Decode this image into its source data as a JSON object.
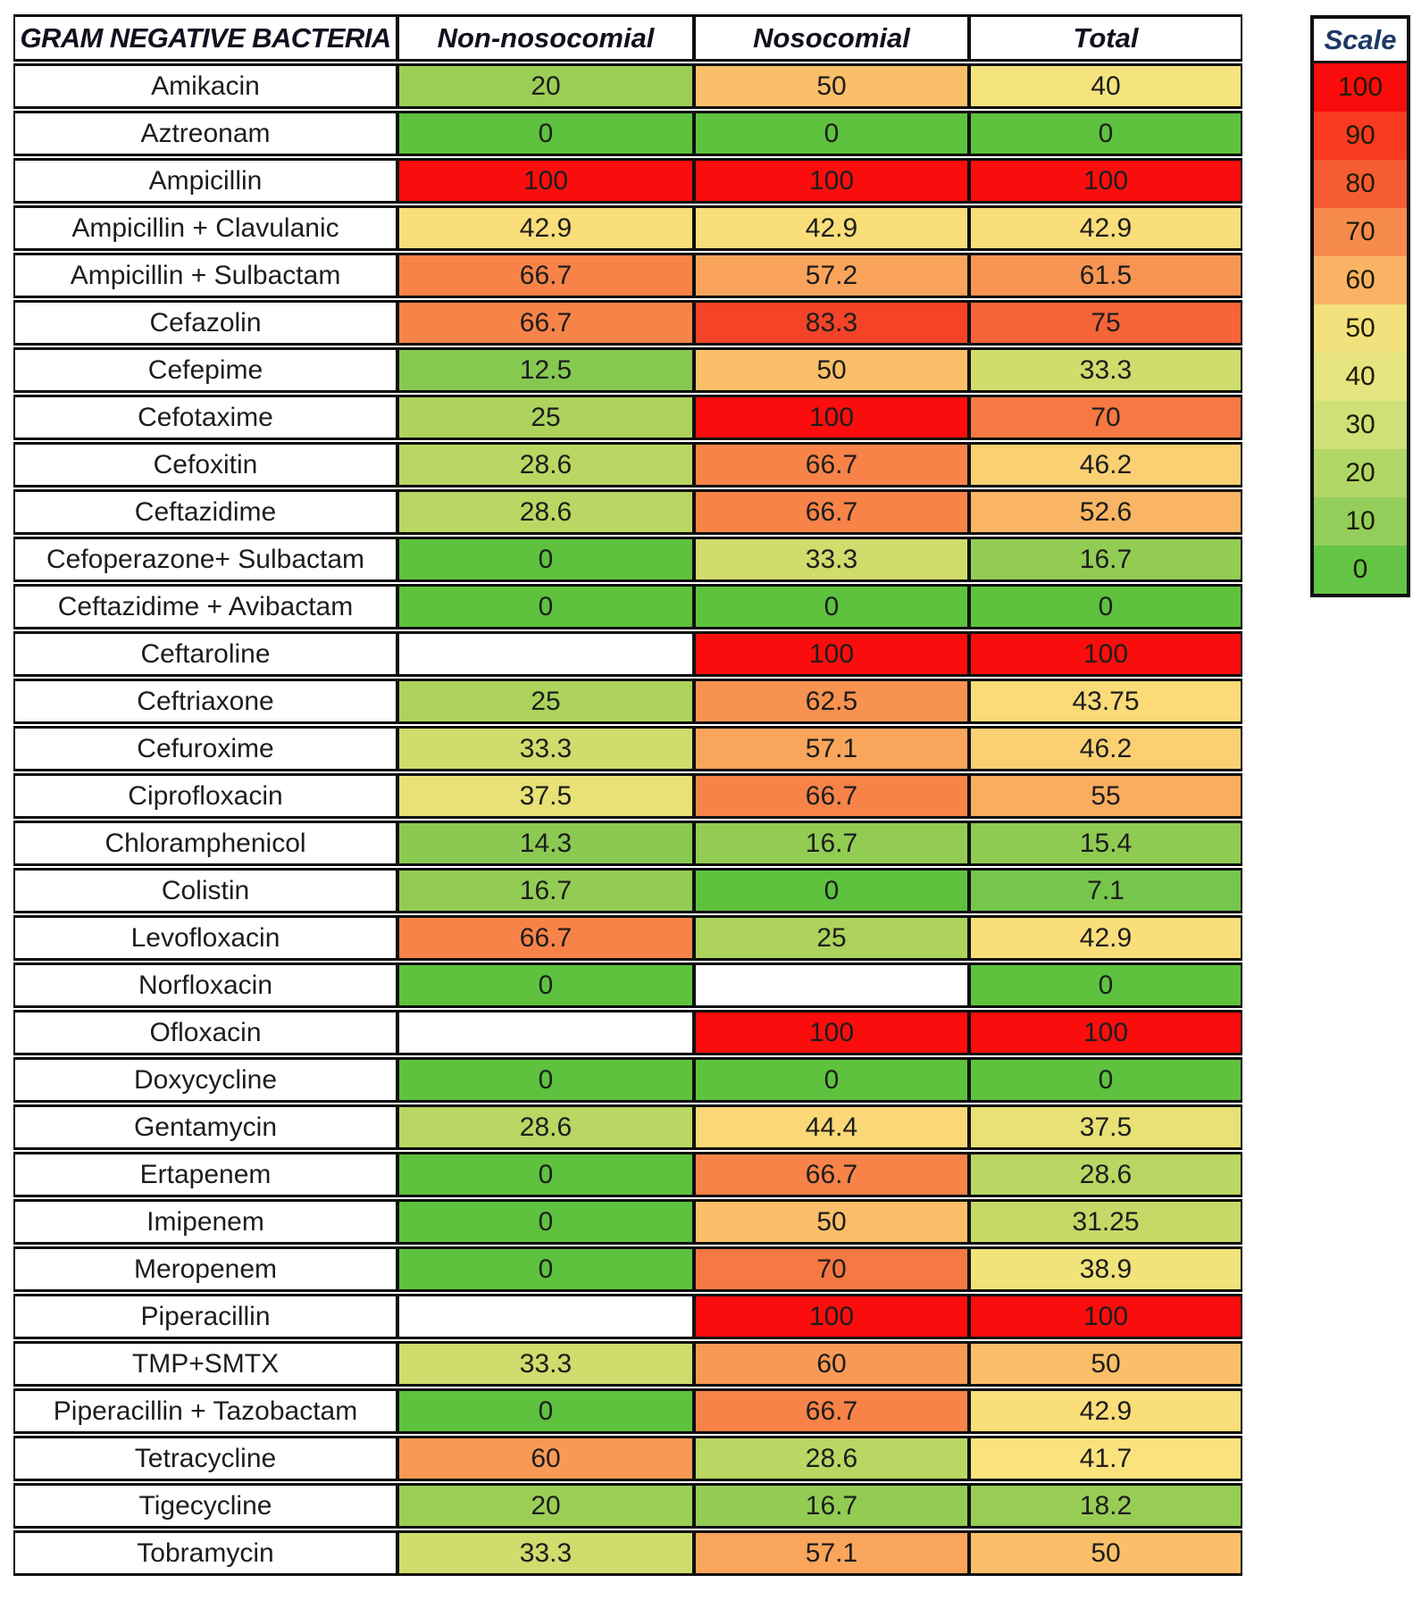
{
  "chart_data": {
    "type": "heatmap",
    "title": "GRAM NEGATIVE BACTERIA",
    "columns": [
      "Non-nosocomial",
      "Nosocomial",
      "Total"
    ],
    "rows": [
      "Amikacin",
      "Aztreonam",
      "Ampicillin",
      "Ampicillin + Clavulanic",
      "Ampicillin + Sulbactam",
      "Cefazolin",
      "Cefepime",
      "Cefotaxime",
      "Cefoxitin",
      "Ceftazidime",
      "Cefoperazone+ Sulbactam",
      "Ceftazidime + Avibactam",
      "Ceftaroline",
      "Ceftriaxone",
      "Cefuroxime",
      "Ciprofloxacin",
      "Chloramphenicol",
      "Colistin",
      "Levofloxacin",
      "Norfloxacin",
      "Ofloxacin",
      "Doxycycline",
      "Gentamycin",
      "Ertapenem",
      "Imipenem",
      "Meropenem",
      "Piperacillin",
      "TMP+SMTX",
      "Piperacillin + Tazobactam",
      "Tetracycline",
      "Tigecycline",
      "Tobramycin"
    ],
    "values": [
      [
        20,
        50,
        40
      ],
      [
        0,
        0,
        0
      ],
      [
        100,
        100,
        100
      ],
      [
        42.9,
        42.9,
        42.9
      ],
      [
        66.7,
        57.2,
        61.5
      ],
      [
        66.7,
        83.3,
        75
      ],
      [
        12.5,
        50,
        33.3
      ],
      [
        25,
        100,
        70
      ],
      [
        28.6,
        66.7,
        46.2
      ],
      [
        28.6,
        66.7,
        52.6
      ],
      [
        0,
        33.3,
        16.7
      ],
      [
        0,
        0,
        0
      ],
      [
        null,
        100,
        100
      ],
      [
        25,
        62.5,
        43.75
      ],
      [
        33.3,
        57.1,
        46.2
      ],
      [
        37.5,
        66.7,
        55
      ],
      [
        14.3,
        16.7,
        15.4
      ],
      [
        16.7,
        0,
        7.1
      ],
      [
        66.7,
        25,
        42.9
      ],
      [
        0,
        null,
        0
      ],
      [
        null,
        100,
        100
      ],
      [
        0,
        0,
        0
      ],
      [
        28.6,
        44.4,
        37.5
      ],
      [
        0,
        66.7,
        28.6
      ],
      [
        0,
        50,
        31.25
      ],
      [
        0,
        70,
        38.9
      ],
      [
        null,
        100,
        100
      ],
      [
        33.3,
        60,
        50
      ],
      [
        0,
        66.7,
        42.9
      ],
      [
        60,
        28.6,
        41.7
      ],
      [
        20,
        16.7,
        18.2
      ],
      [
        33.3,
        57.1,
        50
      ]
    ],
    "scale": {
      "title": "Scale",
      "entries": [
        {
          "label": "100",
          "color": "#FB0C0C"
        },
        {
          "label": "90",
          "color": "#F93A20"
        },
        {
          "label": "80",
          "color": "#F55C33"
        },
        {
          "label": "70",
          "color": "#F78A4D"
        },
        {
          "label": "60",
          "color": "#FAB364"
        },
        {
          "label": "50",
          "color": "#F2E17C"
        },
        {
          "label": "40",
          "color": "#E5E481"
        },
        {
          "label": "30",
          "color": "#CEE077"
        },
        {
          "label": "20",
          "color": "#B0D767"
        },
        {
          "label": "10",
          "color": "#94CE5A"
        },
        {
          "label": "0",
          "color": "#64C446"
        }
      ]
    }
  },
  "colors": {
    "border": "#0F0F0F",
    "empty_cell": "#FFFFFF",
    "scale_title_text": "#1F3864",
    "cell_text": "#241F08",
    "value_stops": [
      {
        "v": 0,
        "c": "#5EC23E"
      },
      {
        "v": 10,
        "c": "#7FC74F"
      },
      {
        "v": 20,
        "c": "#9CCE55"
      },
      {
        "v": 30,
        "c": "#BED864"
      },
      {
        "v": 41,
        "c": "#FAE57F"
      },
      {
        "v": 45,
        "c": "#FAD675"
      },
      {
        "v": 50,
        "c": "#FABF68"
      },
      {
        "v": 60,
        "c": "#F89A55"
      },
      {
        "v": 70,
        "c": "#F67842"
      },
      {
        "v": 80,
        "c": "#F5502D"
      },
      {
        "v": 85,
        "c": "#F43C22"
      },
      {
        "v": 100,
        "c": "#FB0D0D"
      }
    ]
  }
}
